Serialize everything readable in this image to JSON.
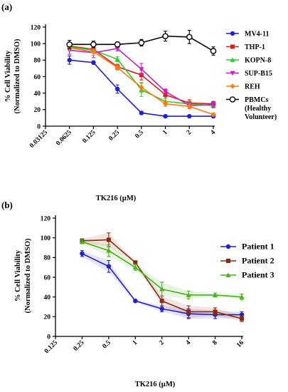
{
  "chart_data": [
    {
      "panel_label": "(a)",
      "type": "line",
      "x_scale": "log2",
      "x": [
        0.0625,
        0.125,
        0.25,
        0.5,
        1,
        2,
        4
      ],
      "x_tick_labels": [
        "0.03125",
        "0.0625",
        "0.125",
        "0.25",
        "0.5",
        "1",
        "2",
        "4"
      ],
      "y_ticks": [
        0,
        20,
        40,
        60,
        80,
        100,
        120
      ],
      "ylim": [
        0,
        120
      ],
      "xlabel": "TK216 (µM)",
      "ylabel": "% Cell Viability",
      "ylabel2": "(Normalized to DMSO)",
      "grid": false,
      "legend_position": "right",
      "series": [
        {
          "name": "MV4-11",
          "color": "#1f1fd4",
          "marker": "circle",
          "values": [
            80,
            77,
            45,
            16,
            12,
            12,
            12
          ],
          "err": [
            5,
            2,
            5,
            2,
            1,
            1,
            1
          ]
        },
        {
          "name": "THP-1",
          "color": "#e8191c",
          "marker": "square",
          "values": [
            97,
            93,
            72,
            62,
            38,
            28,
            27
          ],
          "err": [
            3,
            3,
            3,
            6,
            4,
            4,
            3
          ]
        },
        {
          "name": "KOPN-8",
          "color": "#2ecc2e",
          "marker": "triangle-up",
          "values": [
            96,
            92,
            81,
            44,
            30,
            27,
            25
          ],
          "err": [
            3,
            3,
            3,
            8,
            4,
            3,
            3
          ]
        },
        {
          "name": "SUP-B15",
          "color": "#c222c7",
          "marker": "triangle-down",
          "values": [
            92,
            89,
            94,
            69,
            42,
            25,
            26
          ],
          "err": [
            5,
            6,
            3,
            7,
            3,
            3,
            3
          ]
        },
        {
          "name": "REH",
          "color": "#ff7f0e",
          "marker": "diamond",
          "values": [
            95,
            90,
            71,
            47,
            27,
            24,
            14
          ],
          "err": [
            4,
            4,
            3,
            6,
            3,
            3,
            2
          ]
        },
        {
          "name": "PBMCs",
          "name_lines": [
            "PBMCs",
            "(Healthy",
            "Volunteer)"
          ],
          "color": "#000000",
          "marker": "open-circle",
          "values": [
            99,
            99,
            99,
            101,
            109,
            108,
            91
          ],
          "err": [
            5,
            4,
            3,
            4,
            6,
            8,
            5
          ]
        }
      ]
    },
    {
      "panel_label": "(b)",
      "type": "line",
      "x_scale": "log2",
      "x": [
        0.25,
        0.5,
        1,
        2,
        4,
        8,
        16
      ],
      "x_tick_labels": [
        "0.125",
        "0.25",
        "0.5",
        "1",
        "2",
        "4",
        "8",
        "16"
      ],
      "y_ticks": [
        0,
        20,
        40,
        60,
        80,
        100,
        120
      ],
      "ylim": [
        0,
        120
      ],
      "xlabel": "TK216 (µM)",
      "ylabel": "% Cell Viability",
      "ylabel2": "(Normalized to DMSO)",
      "grid": false,
      "legend_position": "top-right",
      "series": [
        {
          "name": "Patient 1",
          "color": "#1f1fd4",
          "marker": "circle",
          "values": [
            84,
            71,
            36,
            28,
            23,
            22,
            22
          ],
          "err": [
            3,
            6,
            1,
            3,
            5,
            4,
            3
          ]
        },
        {
          "name": "Patient 2",
          "color": "#8b2a0f",
          "marker": "square",
          "values": [
            97,
            98,
            75,
            36,
            25,
            25,
            18
          ],
          "err": [
            2,
            7,
            1,
            5,
            6,
            4,
            3
          ]
        },
        {
          "name": "Patient 3",
          "color": "#4caf1c",
          "marker": "triangle-up",
          "values": [
            96,
            87,
            70,
            48,
            42,
            42,
            40
          ],
          "err": [
            2,
            6,
            3,
            7,
            4,
            2,
            3
          ]
        }
      ]
    }
  ]
}
